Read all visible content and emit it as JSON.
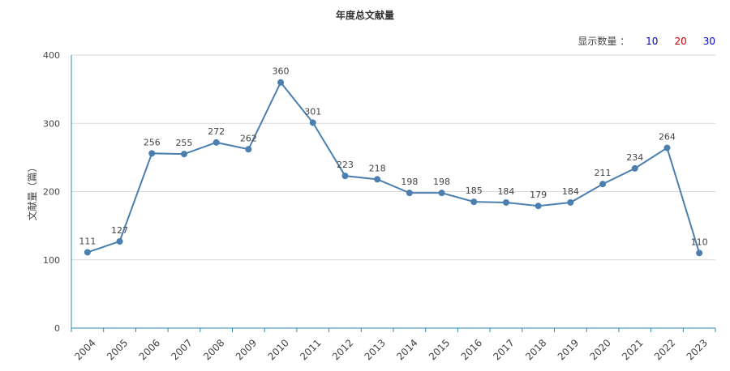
{
  "display_count": {
    "label": "显示数量 ：",
    "options": [
      {
        "value": "10",
        "color": "#0000cc"
      },
      {
        "value": "20",
        "color": "#cc0000"
      },
      {
        "value": "30",
        "color": "#0000cc"
      }
    ]
  },
  "chart_data": {
    "type": "line",
    "title": "年度总文献量",
    "xlabel": "",
    "ylabel": "文献量（篇）",
    "categories": [
      "2004",
      "2005",
      "2006",
      "2007",
      "2008",
      "2009",
      "2010",
      "2011",
      "2012",
      "2013",
      "2014",
      "2015",
      "2016",
      "2017",
      "2018",
      "2019",
      "2020",
      "2021",
      "2022",
      "2023"
    ],
    "series": [
      {
        "values": [
          111,
          127,
          256,
          255,
          272,
          262,
          360,
          301,
          223,
          218,
          198,
          198,
          185,
          184,
          179,
          184,
          211,
          234,
          264,
          110
        ]
      }
    ],
    "ylim": [
      0,
      400
    ],
    "yticks": [
      0,
      100,
      200,
      300,
      400
    ],
    "grid": true,
    "line_color": "#4a7fb0",
    "axis_color": "#2e8bb0"
  }
}
